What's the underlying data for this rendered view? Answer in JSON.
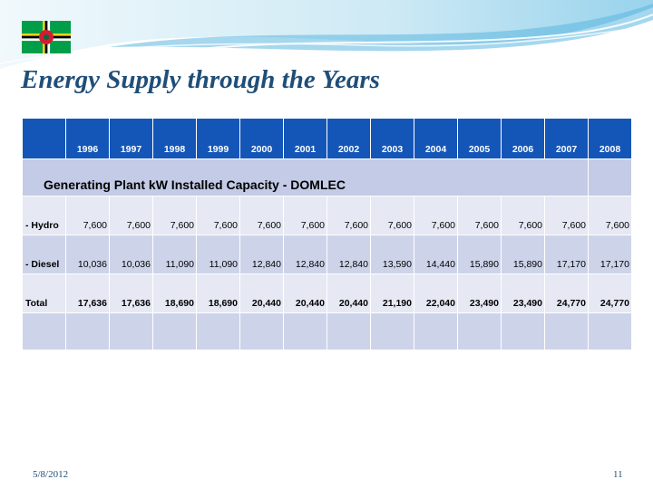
{
  "slide": {
    "title": "Energy Supply through the Years",
    "date": "5/8/2012",
    "page_number": "11"
  },
  "flag": {
    "icon": "dominica-flag-icon",
    "colors": {
      "field": "#009e49",
      "cross_yellow": "#fcd116",
      "cross_black": "#000000",
      "disc": "#d41c30"
    }
  },
  "table": {
    "years": [
      "1996",
      "1997",
      "1998",
      "1999",
      "2000",
      "2001",
      "2002",
      "2003",
      "2004",
      "2005",
      "2006",
      "2007",
      "2008"
    ],
    "section_title": "Generating Plant kW Installed Capacity - DOMLEC",
    "rows": [
      {
        "label": "- Hydro",
        "values": [
          "7,600",
          "7,600",
          "7,600",
          "7,600",
          "7,600",
          "7,600",
          "7,600",
          "7,600",
          "7,600",
          "7,600",
          "7,600",
          "7,600",
          "7,600"
        ]
      },
      {
        "label": "- Diesel",
        "values": [
          "10,036",
          "10,036",
          "11,090",
          "11,090",
          "12,840",
          "12,840",
          "12,840",
          "13,590",
          "14,440",
          "15,890",
          "15,890",
          "17,170",
          "17,170"
        ]
      },
      {
        "label": "Total",
        "values": [
          "17,636",
          "17,636",
          "18,690",
          "18,690",
          "20,440",
          "20,440",
          "20,440",
          "21,190",
          "22,040",
          "23,490",
          "23,490",
          "24,770",
          "24,770"
        ]
      }
    ],
    "colors": {
      "header_bg": "#1456b8",
      "section_bg": "#c3cbe6",
      "row_light": "#e6e9f4",
      "row_dark": "#cdd4ea"
    }
  }
}
